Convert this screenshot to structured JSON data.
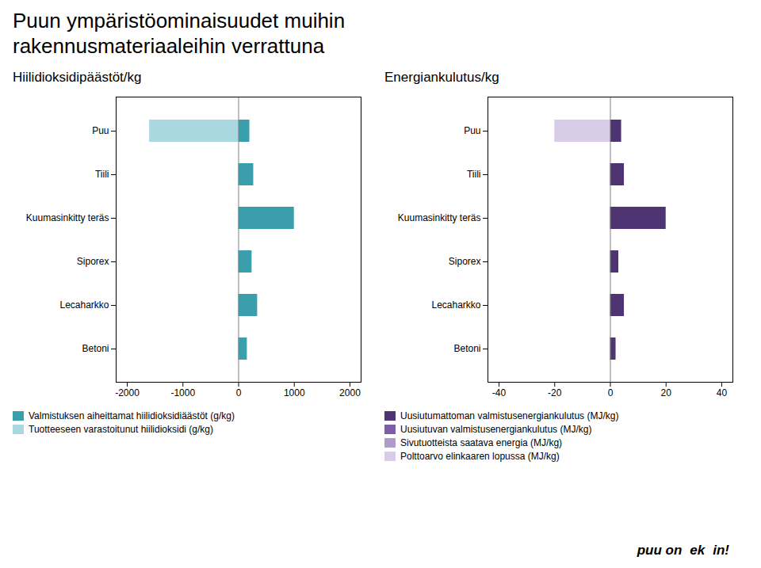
{
  "title": [
    "Puun ympäristöominaisuudet muihin",
    "rakennusmateriaaleihin verrattuna"
  ],
  "annotations": [
    "puu on",
    "ek",
    "in!"
  ],
  "chart_data": [
    {
      "type": "bar",
      "orientation": "horizontal",
      "stacked": false,
      "grid": false,
      "legend": "lower left",
      "title": "Hiilidioksidipäästöt/kg",
      "categories": [
        "Puu",
        "Tiili",
        "Kuumasinkitty teräs",
        "Siporex",
        "Lecaharkko",
        "Betoni"
      ],
      "series": [
        {
          "name": "Valmistuksen aiheittamat hiilidioksidiäästöt (g/kg)",
          "color": "#3a9eac",
          "values": [
            200,
            270,
            1000,
            240,
            340,
            155
          ]
        },
        {
          "name": "Tuotteeseen varastoitunut hiilidioksidi (g/kg)",
          "color": "#aad8e0",
          "values": [
            -1600,
            0,
            0,
            0,
            0,
            0
          ]
        }
      ],
      "xlim": [
        -2200,
        2200
      ],
      "xticks": [
        -2000,
        -1000,
        0,
        1000,
        2000
      ]
    },
    {
      "type": "bar",
      "orientation": "horizontal",
      "stacked": false,
      "grid": false,
      "legend": "lower left",
      "title": "Energiankulutus/kg",
      "categories": [
        "Puu",
        "Tiili",
        "Kuumasinkitty teräs",
        "Siporex",
        "Lecaharkko",
        "Betoni"
      ],
      "series": [
        {
          "name": "Uusiutumattoman valmistusenergiankulutus (MJ/kg)",
          "color": "#4e3472",
          "values": [
            4,
            5,
            20,
            3,
            5,
            2
          ]
        },
        {
          "name": "Uusiutuvan valmistusenergiankulutus (MJ/kg)",
          "color": "#7b5ea7",
          "values": [
            0,
            0,
            0,
            0,
            0,
            0
          ]
        },
        {
          "name": "Sivutuotteista saatava energia (MJ/kg)",
          "color": "#b09cc8",
          "values": [
            0,
            0,
            0,
            0,
            0,
            0
          ]
        },
        {
          "name": "Polttoarvo elinkaaren lopussa (MJ/kg)",
          "color": "#d8cce8",
          "values": [
            -20,
            0,
            0,
            0,
            0,
            0
          ]
        }
      ],
      "xlim": [
        -44,
        44
      ],
      "xticks": [
        -40,
        -20,
        0,
        20,
        40
      ]
    }
  ]
}
